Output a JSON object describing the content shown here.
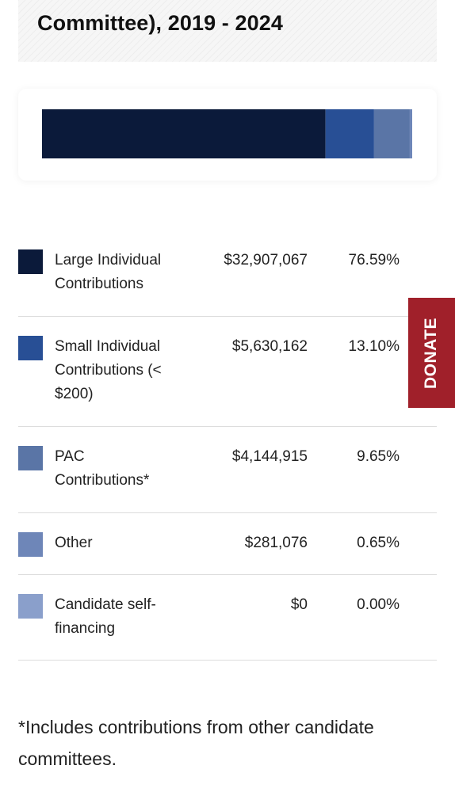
{
  "header": {
    "title": "Committee), 2019 - 2024"
  },
  "chart_data": {
    "type": "bar",
    "orientation": "horizontal-stacked",
    "categories": [
      "Large Individual Contributions",
      "Small Individual Contributions (< $200)",
      "PAC Contributions*",
      "Other",
      "Candidate self-financing"
    ],
    "values": [
      32907067,
      5630162,
      4144915,
      281076,
      0
    ],
    "percents": [
      76.59,
      13.1,
      9.65,
      0.65,
      0.0
    ],
    "colors": [
      "#0b1a3a",
      "#284f95",
      "#5a75a6",
      "#6e86b8",
      "#8a9fcb"
    ]
  },
  "table": {
    "rows": [
      {
        "label": "Large Individual Contributions",
        "amount": "$32,907,067",
        "percent": "76.59%",
        "color": "#0b1a3a"
      },
      {
        "label": "Small Individual Contributions (< $200)",
        "amount": "$5,630,162",
        "percent": "13.10%",
        "color": "#284f95"
      },
      {
        "label": "PAC Contributions*",
        "amount": "$4,144,915",
        "percent": "9.65%",
        "color": "#5a75a6"
      },
      {
        "label": "Other",
        "amount": "$281,076",
        "percent": "0.65%",
        "color": "#6e86b8"
      },
      {
        "label": "Candidate self-financing",
        "amount": "$0",
        "percent": "0.00%",
        "color": "#8a9fcb"
      }
    ]
  },
  "footnote": "*Includes contributions from other candidate committees.",
  "donate": {
    "label": "DONATE",
    "color": "#a0202a"
  }
}
